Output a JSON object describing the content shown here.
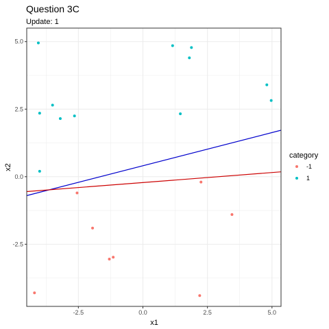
{
  "chart_data": {
    "type": "scatter",
    "title": "Question 3C",
    "subtitle": "Update: 1",
    "xlabel": "x1",
    "ylabel": "x2",
    "xlim": [
      -4.5,
      5.35
    ],
    "ylim": [
      -4.8,
      5.5
    ],
    "x_ticks": [
      {
        "value": -2.5,
        "label": "-2.5"
      },
      {
        "value": 0,
        "label": "0.0"
      },
      {
        "value": 2.5,
        "label": "2.5"
      },
      {
        "value": 5,
        "label": "5.0"
      }
    ],
    "y_ticks": [
      {
        "value": -2.5,
        "label": "-2.5"
      },
      {
        "value": 0,
        "label": "0.0"
      },
      {
        "value": 2.5,
        "label": "2.5"
      },
      {
        "value": 5,
        "label": "5.0"
      }
    ],
    "grid": true,
    "legend": {
      "title": "category",
      "placement": "right",
      "entries": [
        {
          "label": "-1",
          "color": "#F8766D"
        },
        {
          "label": "1",
          "color": "#00BFC4"
        }
      ]
    },
    "series": [
      {
        "category": "-1",
        "color": "#F8766D",
        "points": [
          [
            -4.2,
            -4.3
          ],
          [
            -2.55,
            -0.6
          ],
          [
            -1.95,
            -1.9
          ],
          [
            -1.3,
            -3.05
          ],
          [
            -1.15,
            -2.98
          ],
          [
            2.2,
            -4.4
          ],
          [
            2.25,
            -0.2
          ],
          [
            3.45,
            -1.4
          ]
        ]
      },
      {
        "category": "1",
        "color": "#00BFC4",
        "points": [
          [
            -4.05,
            4.95
          ],
          [
            -4.0,
            2.35
          ],
          [
            -4.0,
            0.2
          ],
          [
            -3.5,
            2.65
          ],
          [
            -3.2,
            2.15
          ],
          [
            -2.65,
            2.25
          ],
          [
            1.15,
            4.85
          ],
          [
            1.45,
            2.33
          ],
          [
            1.8,
            4.4
          ],
          [
            1.88,
            4.78
          ],
          [
            4.8,
            3.4
          ],
          [
            4.97,
            2.82
          ]
        ]
      }
    ],
    "lines": [
      {
        "color": "#0000CC",
        "from": [
          -4.5,
          -0.7
        ],
        "to": [
          5.35,
          1.72
        ]
      },
      {
        "color": "#CC0000",
        "from": [
          -4.5,
          -0.55
        ],
        "to": [
          5.35,
          0.18
        ]
      }
    ]
  }
}
